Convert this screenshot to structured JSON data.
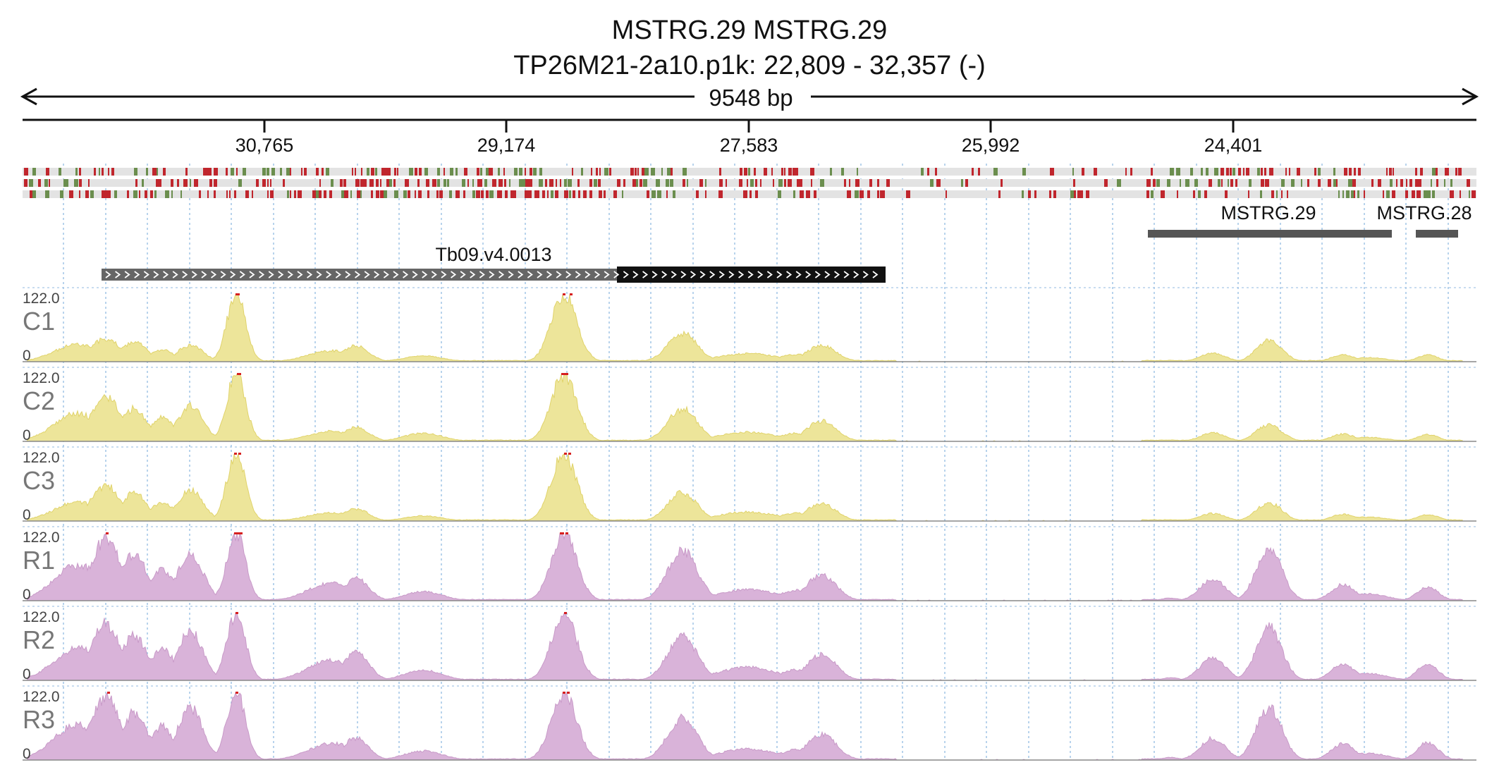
{
  "header": {
    "title_line1": "MSTRG.29  MSTRG.29",
    "title_line2": "TP26M21-2a10.p1k: 22,809 - 32,357 (-)"
  },
  "ruler": {
    "span_label": "9548 bp",
    "ticks": [
      "30,765",
      "29,174",
      "27,583",
      "25,992",
      "24,401"
    ]
  },
  "annotations": {
    "transcripts": [
      {
        "label": "MSTRG.29"
      },
      {
        "label": "MSTRG.28"
      }
    ],
    "gene": {
      "label": "Tb09.v4.0013",
      "strand": "-"
    }
  },
  "colors": {
    "control_fill": "#ede59a",
    "control_stroke": "#e0d36a",
    "treatment_fill": "#d9b3d9",
    "treatment_stroke": "#c89ac8",
    "clip_marker": "#d62020",
    "grid": "#a7c8e8",
    "mismatch_red": "#c0262d",
    "mismatch_green": "#6b8e4e",
    "transcript": "#555555",
    "gene_utr": "#666666",
    "gene_cds": "#111111"
  },
  "tracks": [
    {
      "label": "C1",
      "max": "122.0",
      "min": "0",
      "group": "control"
    },
    {
      "label": "C2",
      "max": "122.0",
      "min": "0",
      "group": "control"
    },
    {
      "label": "C3",
      "max": "122.0",
      "min": "0",
      "group": "control"
    },
    {
      "label": "R1",
      "max": "122.0",
      "min": "0",
      "group": "treatment"
    },
    {
      "label": "R2",
      "max": "122.0",
      "min": "0",
      "group": "treatment"
    },
    {
      "label": "R3",
      "max": "122.0",
      "min": "0",
      "group": "treatment"
    }
  ]
}
